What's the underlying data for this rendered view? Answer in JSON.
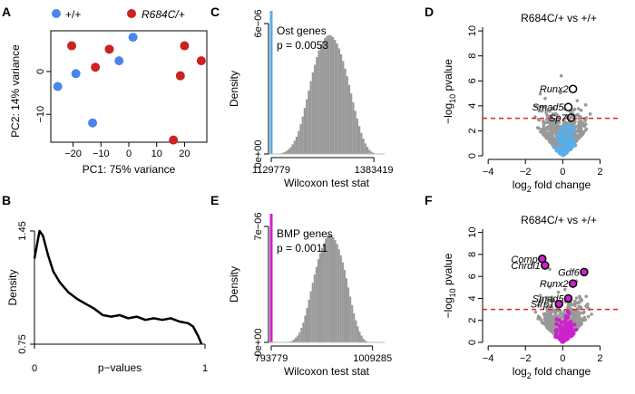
{
  "panel_letters": {
    "A": "A",
    "B": "B",
    "C": "C",
    "D": "D",
    "E": "E",
    "F": "F"
  },
  "colors": {
    "wt": "#4a86e8",
    "mut": "#cc2222",
    "ost": "#5aaee8",
    "bmp": "#cc22cc",
    "gray": "#999999",
    "redline": "#dd2222"
  },
  "chart_data": [
    {
      "id": "A",
      "type": "scatter",
      "legend": {
        "wt": "+/+",
        "mut": "R684C/+"
      },
      "xlabel": "PC1: 75% variance",
      "ylabel": "PC2: 14% variance",
      "xticks": [
        -20,
        -10,
        0,
        10,
        20
      ],
      "yticks": [
        0,
        -10
      ],
      "xlim": [
        -28,
        28
      ],
      "ylim": [
        -16.5,
        9.5
      ],
      "series": [
        {
          "name": "+/+",
          "points": [
            [
              -25.5,
              -3.5
            ],
            [
              -19,
              -0.5
            ],
            [
              -13,
              -12
            ],
            [
              -3.5,
              2.5
            ],
            [
              1.5,
              8
            ]
          ]
        },
        {
          "name": "R684C/+",
          "points": [
            [
              -20.5,
              6
            ],
            [
              -12,
              1
            ],
            [
              -7,
              5.2
            ],
            [
              16,
              -16
            ],
            [
              18.5,
              -1
            ],
            [
              20,
              6
            ],
            [
              26,
              2.5
            ]
          ]
        }
      ]
    },
    {
      "id": "B",
      "type": "line",
      "xlabel": "p−values",
      "ylabel": "Density",
      "xticks": [
        "0",
        "1"
      ],
      "yticks": [
        "1.45",
        "0.75"
      ],
      "xlim": [
        0,
        1
      ],
      "ylim": [
        0.75,
        1.45
      ],
      "points": [
        [
          0,
          1.28
        ],
        [
          0.03,
          1.45
        ],
        [
          0.05,
          1.42
        ],
        [
          0.08,
          1.3
        ],
        [
          0.11,
          1.2
        ],
        [
          0.15,
          1.13
        ],
        [
          0.2,
          1.07
        ],
        [
          0.25,
          1.03
        ],
        [
          0.3,
          1.0
        ],
        [
          0.35,
          0.97
        ],
        [
          0.4,
          0.93
        ],
        [
          0.45,
          0.92
        ],
        [
          0.5,
          0.93
        ],
        [
          0.55,
          0.91
        ],
        [
          0.6,
          0.92
        ],
        [
          0.65,
          0.9
        ],
        [
          0.7,
          0.91
        ],
        [
          0.75,
          0.9
        ],
        [
          0.8,
          0.91
        ],
        [
          0.85,
          0.89
        ],
        [
          0.9,
          0.88
        ],
        [
          0.93,
          0.86
        ],
        [
          0.96,
          0.8
        ],
        [
          0.98,
          0.75
        ]
      ]
    },
    {
      "id": "C",
      "type": "bar",
      "annotation": [
        "Ost genes",
        "p = 0.0053"
      ],
      "xlabel": "Wilcoxon test stat",
      "ylabel": "Density",
      "xticks": [
        "1129779",
        "1383419"
      ],
      "yticks": [
        "0e+00",
        "6e−06"
      ],
      "xlim": [
        1123000,
        1410000
      ],
      "ylim": [
        0,
        6.8e-06
      ],
      "observed": 1129779,
      "bin_start": 1150000,
      "bin_width": 5000,
      "values": [
        0.02,
        0.05,
        0.1,
        0.16,
        0.25,
        0.35,
        0.5,
        0.7,
        0.9,
        1.2,
        1.55,
        1.95,
        2.4,
        2.85,
        3.3,
        3.8,
        4.25,
        4.65,
        5.05,
        5.4,
        5.7,
        5.9,
        6.05,
        6.15,
        6.2,
        6.18,
        6.1,
        5.95,
        5.75,
        5.5,
        5.2,
        4.85,
        4.45,
        4.05,
        3.6,
        3.15,
        2.7,
        2.25,
        1.85,
        1.45,
        1.1,
        0.8,
        0.55,
        0.37,
        0.22,
        0.12,
        0.06,
        0.02
      ]
    },
    {
      "id": "E",
      "type": "bar",
      "annotation": [
        "BMP genes",
        "p = 0.0011"
      ],
      "xlabel": "Wilcoxon test stat",
      "ylabel": "Density",
      "xticks": [
        "793779",
        "1009285"
      ],
      "yticks": [
        "0e+00",
        "7e−06"
      ],
      "xlim": [
        788000,
        1035000
      ],
      "ylim": [
        0,
        7.6e-06
      ],
      "observed": 793779,
      "bin_start": 828000,
      "bin_width": 4000,
      "values": [
        0.02,
        0.05,
        0.1,
        0.18,
        0.3,
        0.45,
        0.65,
        0.95,
        1.3,
        1.75,
        2.25,
        2.8,
        3.35,
        3.9,
        4.45,
        4.95,
        5.45,
        5.85,
        6.2,
        6.5,
        6.8,
        7.0,
        7.1,
        7.0,
        6.9,
        6.7,
        6.45,
        6.1,
        5.7,
        5.25,
        4.75,
        4.2,
        3.6,
        3.0,
        2.45,
        1.9,
        1.45,
        1.05,
        0.7,
        0.45,
        0.25,
        0.12,
        0.05
      ]
    },
    {
      "id": "D",
      "type": "scatter",
      "title": "R684C/+ vs +/+",
      "xlabel": "log2 fold change",
      "ylabel": "−log10 pvalue",
      "xticks": [
        -4,
        -2,
        0,
        2
      ],
      "yticks": [
        0,
        2,
        4,
        6,
        8,
        10
      ],
      "xlim": [
        -4.3,
        3.1
      ],
      "ylim": [
        0,
        10.3
      ],
      "threshold": 3,
      "labels": [
        {
          "text": "Runx2",
          "x": 0.55,
          "y": 5.35
        },
        {
          "text": "Smad5",
          "x": 0.3,
          "y": 3.9
        },
        {
          "text": "Sp7",
          "x": 0.45,
          "y": 3.05
        }
      ],
      "highlight_series": "Ost genes"
    },
    {
      "id": "F",
      "type": "scatter",
      "title": "R684C/+ vs +/+",
      "xlabel": "log2 fold change",
      "ylabel": "−log10 pvalue",
      "xticks": [
        -4,
        -2,
        0,
        2
      ],
      "yticks": [
        0,
        2,
        4,
        6,
        8,
        10
      ],
      "xlim": [
        -4.3,
        3.1
      ],
      "ylim": [
        0,
        10.3
      ],
      "threshold": 3,
      "labels": [
        {
          "text": "Comp",
          "x": -1.1,
          "y": 7.6
        },
        {
          "text": "Chrdl1",
          "x": -0.95,
          "y": 7.0
        },
        {
          "text": "Gdf6",
          "x": 1.15,
          "y": 6.4
        },
        {
          "text": "Runx2",
          "x": 0.55,
          "y": 5.35
        },
        {
          "text": "Smad5",
          "x": 0.3,
          "y": 4.0
        },
        {
          "text": "Sfrp1",
          "x": -0.2,
          "y": 3.5
        }
      ],
      "highlight_series": "BMP genes"
    }
  ]
}
